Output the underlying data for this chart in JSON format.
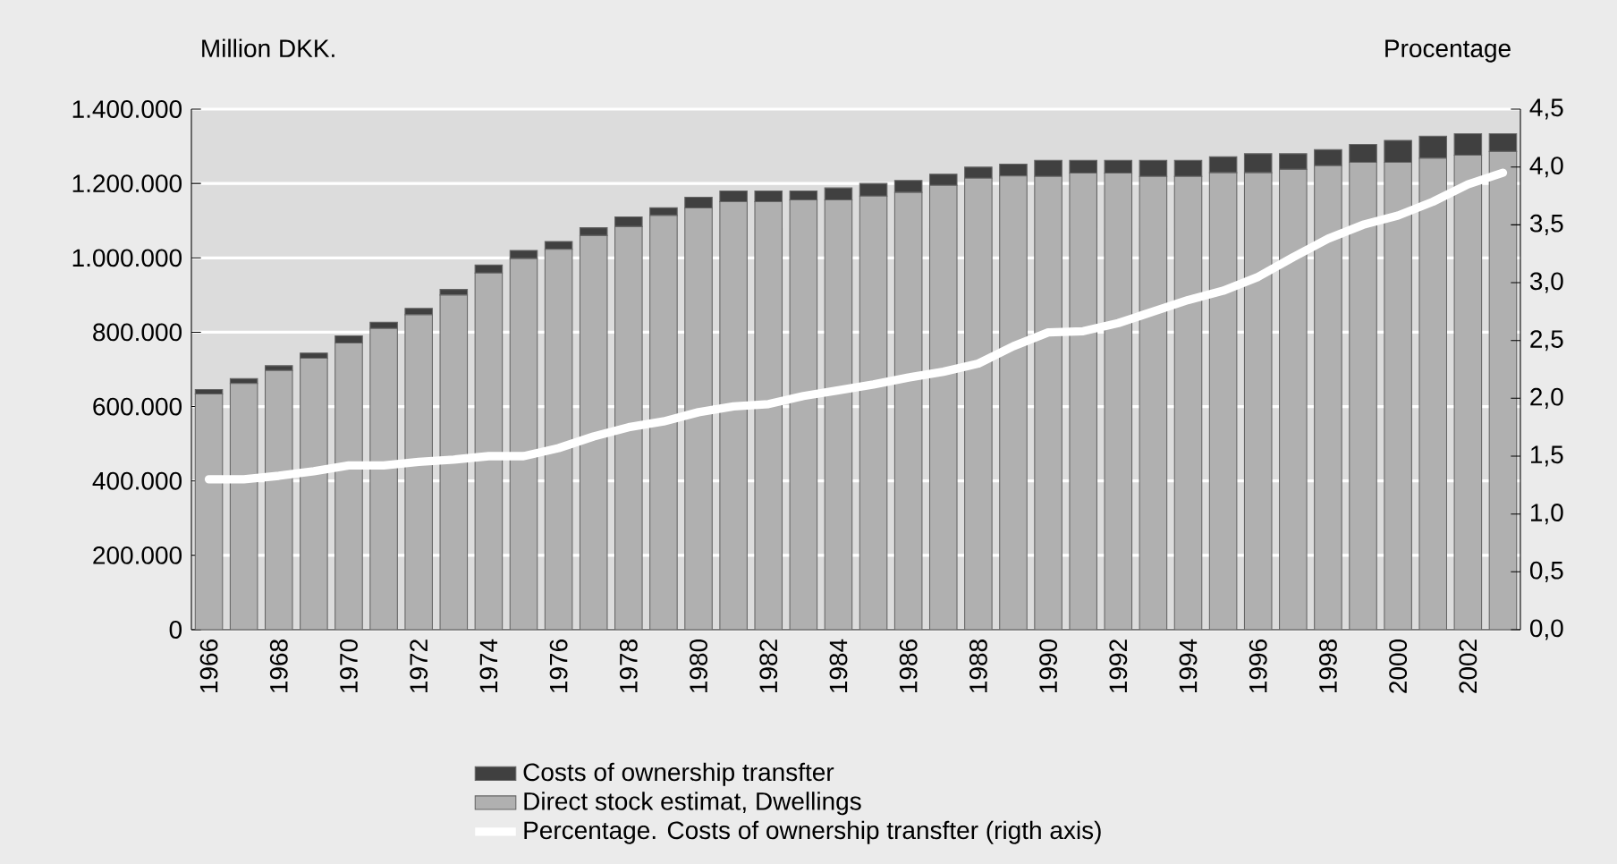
{
  "chart_data": {
    "type": "bar",
    "stacked": true,
    "categories": [
      "1966",
      null,
      "1968",
      null,
      "1970",
      null,
      "1972",
      null,
      "1974",
      null,
      "1976",
      null,
      "1978",
      null,
      "1980",
      null,
      "1982",
      null,
      "1984",
      null,
      "1986",
      null,
      "1988",
      null,
      "1990",
      null,
      "1992",
      null,
      "1994",
      null,
      "1996",
      null,
      "1998",
      null,
      "2000",
      null,
      "2002",
      null
    ],
    "series": [
      {
        "name": "Direct stock estimat, Dwellings",
        "color": "#b0b0b0",
        "values": [
          634000,
          662000,
          697000,
          730000,
          771000,
          810000,
          847000,
          900000,
          959000,
          998000,
          1023000,
          1060000,
          1084000,
          1114000,
          1134000,
          1151000,
          1151000,
          1156000,
          1156000,
          1166000,
          1176000,
          1195000,
          1214000,
          1220000,
          1219000,
          1228000,
          1228000,
          1219000,
          1219000,
          1229000,
          1229000,
          1238000,
          1248000,
          1257000,
          1257000,
          1268000,
          1276000,
          1286000
        ]
      },
      {
        "name": "Costs of ownership transfter",
        "color": "#404040",
        "values": [
          12000,
          13000,
          13000,
          14000,
          19000,
          17000,
          17000,
          15000,
          22000,
          22000,
          21000,
          21000,
          26000,
          21000,
          29000,
          29000,
          29000,
          24000,
          32000,
          34000,
          32000,
          30000,
          30000,
          32000,
          43000,
          34000,
          34000,
          43000,
          43000,
          43000,
          51000,
          42000,
          43000,
          48000,
          59000,
          59000,
          58000,
          48000
        ]
      },
      {
        "name": "Percentage. Costs of ownership transfter (rigth axis)",
        "type": "line",
        "axis": "y2",
        "color": "#ffffff",
        "values": [
          1.3,
          1.3,
          1.33,
          1.37,
          1.42,
          1.42,
          1.45,
          1.47,
          1.5,
          1.5,
          1.57,
          1.67,
          1.75,
          1.8,
          1.88,
          1.93,
          1.95,
          2.02,
          2.07,
          2.12,
          2.18,
          2.23,
          2.3,
          2.45,
          2.57,
          2.58,
          2.65,
          2.75,
          2.85,
          2.93,
          3.05,
          3.22,
          3.38,
          3.5,
          3.58,
          3.7,
          3.85,
          3.95
        ]
      }
    ],
    "ylabel": "Million DKK.",
    "y2label": "Procentage",
    "ylim": [
      0,
      1400000
    ],
    "yticks": [
      0,
      {
        "value": 200000,
        "label": "200.000"
      },
      {
        "value": 400000,
        "label": "400.000"
      },
      {
        "value": 600000,
        "label": "600.000"
      },
      {
        "value": 800000,
        "label": "800.000"
      },
      {
        "value": 1000000,
        "label": "1.000.000"
      },
      {
        "value": 1200000,
        "label": "1.200.000"
      },
      {
        "value": 1400000,
        "label": "1.400.000"
      }
    ],
    "y2lim": [
      0,
      4.5
    ],
    "y2ticks": [
      {
        "value": 0,
        "label": "0,0"
      },
      {
        "value": 0.5,
        "label": "0,5"
      },
      {
        "value": 1,
        "label": "1,0"
      },
      {
        "value": 1.5,
        "label": "1,5"
      },
      {
        "value": 2,
        "label": "2,0"
      },
      {
        "value": 2.5,
        "label": "2,5"
      },
      {
        "value": 3,
        "label": "3,0"
      },
      {
        "value": 3.5,
        "label": "3,5"
      },
      {
        "value": 4,
        "label": "4,0"
      },
      {
        "value": 4.5,
        "label": "4,5"
      }
    ],
    "grid": "y",
    "legend": "bottom"
  }
}
